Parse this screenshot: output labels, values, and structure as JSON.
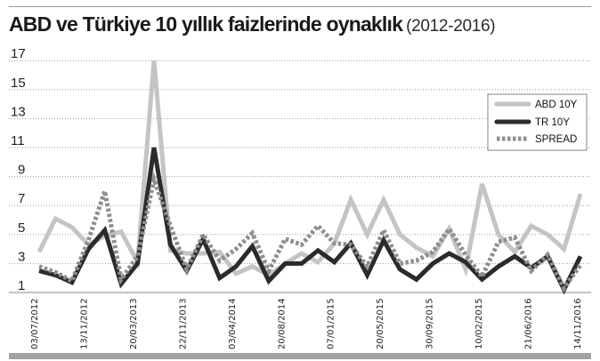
{
  "header": {
    "title": "ABD ve Türkiye 10 yıllık faizlerinde oynaklık",
    "subtitle": "(2012-2016)"
  },
  "legend": {
    "items": [
      {
        "label": "ABD 10Y",
        "color": "#c4c4c4",
        "style": "solid"
      },
      {
        "label": "TR 10Y",
        "color": "#2b2b2b",
        "style": "solid"
      },
      {
        "label": "SPREAD",
        "color": "#8e8e8e",
        "style": "dotted"
      }
    ]
  },
  "chart_data": {
    "type": "line",
    "title": "ABD ve Türkiye 10 yıllık faizlerinde oynaklık (2012-2016)",
    "xlabel": "",
    "ylabel": "",
    "ylim": [
      1,
      17
    ],
    "yticks": [
      1,
      3,
      5,
      7,
      9,
      11,
      13,
      15,
      17
    ],
    "grid": true,
    "legend_position": "upper right",
    "x_tick_labels": [
      "03/07/2012",
      "13/11/2012",
      "20/03/2013",
      "22/11/2013",
      "03/04/2014",
      "20/08/2014",
      "07/01/2015",
      "20/05/2015",
      "30/09/2015",
      "10/02/2015",
      "21/06/2016",
      "14/11/2016"
    ],
    "series": [
      {
        "name": "ABD 10Y",
        "color": "#c4c4c4",
        "values": [
          3.8,
          6.1,
          5.5,
          4.3,
          4.9,
          5.2,
          3.1,
          17.0,
          3.9,
          3.7,
          3.7,
          3.8,
          2.3,
          2.8,
          2.2,
          3.0,
          3.7,
          3.1,
          4.4,
          7.4,
          5.0,
          7.4,
          5.0,
          4.1,
          3.5,
          5.4,
          2.6,
          8.5,
          5.0,
          3.8,
          5.6,
          5.0,
          4.0,
          7.8
        ]
      },
      {
        "name": "TR 10Y",
        "color": "#2b2b2b",
        "values": [
          2.5,
          2.2,
          1.7,
          4.0,
          5.3,
          1.6,
          3.0,
          11.0,
          4.3,
          2.5,
          4.7,
          2.0,
          2.8,
          4.2,
          1.8,
          3.0,
          3.0,
          3.9,
          3.1,
          4.4,
          2.2,
          4.6,
          2.6,
          1.9,
          3.0,
          3.7,
          3.1,
          1.9,
          2.8,
          3.5,
          2.7,
          3.5,
          1.2,
          3.5
        ]
      },
      {
        "name": "SPREAD",
        "color": "#8e8e8e",
        "values": [
          2.8,
          2.4,
          1.8,
          4.6,
          8.0,
          1.9,
          3.5,
          8.8,
          5.6,
          2.6,
          5.0,
          3.2,
          4.0,
          5.1,
          2.5,
          4.7,
          4.3,
          5.6,
          4.4,
          4.3,
          2.8,
          5.3,
          3.0,
          3.2,
          3.8,
          5.4,
          3.6,
          2.1,
          4.5,
          4.8,
          2.5,
          3.6,
          1.3,
          2.9
        ]
      }
    ]
  }
}
